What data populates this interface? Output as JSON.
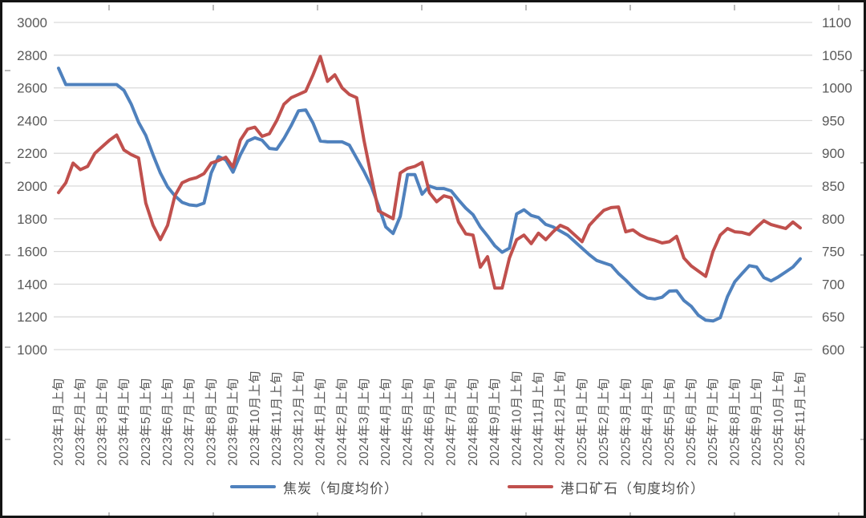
{
  "chart_data": {
    "type": "line",
    "title": "",
    "x_label_point_stride": 3,
    "x_labels": [
      "2023年1月上旬",
      "2023年2月上旬",
      "2023年3月上旬",
      "2023年4月上旬",
      "2023年5月上旬",
      "2023年6月上旬",
      "2023年7月上旬",
      "2023年8月上旬",
      "2023年9月上旬",
      "2023年10月上旬",
      "2023年11月上旬",
      "2023年12月上旬",
      "2024年1月上旬",
      "2024年2月上旬",
      "2024年3月上旬",
      "2024年4月上旬",
      "2024年5月上旬",
      "2024年6月上旬",
      "2024年7月上旬",
      "2024年8月上旬",
      "2024年9月上旬",
      "2024年10月上旬",
      "2024年11月上旬",
      "2024年12月上旬",
      "2025年1月上旬",
      "2025年2月上旬",
      "2025年3月上旬",
      "2025年4月上旬",
      "2025年5月上旬",
      "2025年6月上旬",
      "2025年7月上旬",
      "2025年8月上旬",
      "2025年9月上旬",
      "2025年10月上旬",
      "2025年11月上旬"
    ],
    "left_axis": {
      "min": 1000,
      "max": 3000,
      "step": 200,
      "ticks": [
        3000,
        2800,
        2600,
        2400,
        2200,
        2000,
        1800,
        1600,
        1400,
        1200,
        1000
      ]
    },
    "right_axis": {
      "min": 600,
      "max": 1100,
      "step": 50,
      "ticks": [
        1100,
        1050,
        1000,
        950,
        900,
        850,
        800,
        750,
        700,
        650,
        600
      ]
    },
    "grid": true,
    "legend_position": "bottom",
    "series": [
      {
        "id": "coke-series",
        "name": "焦炭（旬度均价）",
        "axis": "left",
        "color": "#4F81BD",
        "values": [
          2720,
          2620,
          2620,
          2620,
          2620,
          2620,
          2620,
          2620,
          2620,
          2585,
          2500,
          2390,
          2310,
          2190,
          2080,
          1995,
          1940,
          1900,
          1885,
          1880,
          1895,
          2080,
          2180,
          2160,
          2085,
          2190,
          2275,
          2295,
          2280,
          2230,
          2225,
          2290,
          2370,
          2460,
          2465,
          2385,
          2275,
          2270,
          2270,
          2270,
          2250,
          2170,
          2090,
          2000,
          1880,
          1750,
          1710,
          1815,
          2070,
          2070,
          1950,
          2000,
          1985,
          1985,
          1970,
          1915,
          1865,
          1825,
          1750,
          1695,
          1635,
          1595,
          1620,
          1830,
          1855,
          1820,
          1808,
          1765,
          1750,
          1725,
          1700,
          1660,
          1620,
          1580,
          1545,
          1530,
          1515,
          1465,
          1425,
          1380,
          1340,
          1315,
          1310,
          1320,
          1358,
          1360,
          1300,
          1265,
          1210,
          1180,
          1175,
          1195,
          1325,
          1415,
          1465,
          1513,
          1505,
          1440,
          1420,
          1445,
          1475,
          1505,
          1555
        ]
      },
      {
        "id": "port-ore-series",
        "name": "港口矿石（旬度均价）",
        "axis": "right",
        "color": "#C0504D",
        "values": [
          840,
          855,
          885,
          875,
          880,
          900,
          910,
          920,
          928,
          905,
          898,
          893,
          824,
          790,
          768,
          790,
          835,
          855,
          860,
          863,
          869,
          885,
          889,
          894,
          879,
          920,
          937,
          940,
          926,
          930,
          950,
          975,
          985,
          990,
          995,
          1020,
          1048,
          1010,
          1020,
          1000,
          990,
          985,
          920,
          865,
          812,
          806,
          800,
          870,
          877,
          880,
          886,
          840,
          826,
          835,
          832,
          795,
          777,
          775,
          726,
          742,
          694,
          694,
          740,
          768,
          775,
          762,
          778,
          768,
          780,
          790,
          785,
          775,
          765,
          790,
          802,
          813,
          817,
          818,
          780,
          783,
          775,
          770,
          767,
          763,
          765,
          773,
          740,
          728,
          720,
          712,
          750,
          775,
          785,
          780,
          779,
          776,
          787,
          797,
          791,
          788,
          785,
          795,
          786
        ]
      }
    ]
  },
  "legend": [
    {
      "label": "焦炭（旬度均价）",
      "color": "#4F81BD"
    },
    {
      "label": "港口矿石（旬度均价）",
      "color": "#C0504D"
    }
  ],
  "colors": {
    "grid": "#D9D9D9",
    "axis_text": "#595959",
    "frame": "#141414",
    "frame_tick": "#a6a6a6",
    "background": "#ffffff"
  }
}
